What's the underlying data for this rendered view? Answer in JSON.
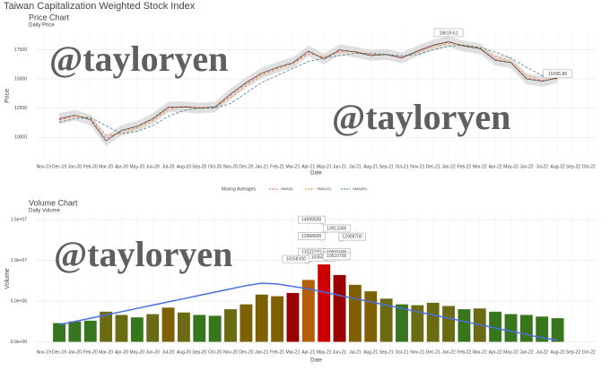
{
  "title": "Taiwan Capitalization Weighted Stock Index",
  "watermarks": [
    "@tayloryen",
    "@tayloryen",
    "@tayloryen"
  ],
  "chart_data": [
    {
      "type": "line",
      "title": "Price Chart",
      "subtitle": "Daily Price",
      "y_label": "Price",
      "x_label": "Date",
      "categories": [
        "Nov-19",
        "Dec-19",
        "Jan-20",
        "Feb-20",
        "Mar-20",
        "Apr-20",
        "May-20",
        "Jun-20",
        "Jul-20",
        "Aug-20",
        "Sep-20",
        "Oct-20",
        "Nov-20",
        "Dec-20",
        "Jan-21",
        "Feb-21",
        "Mar-21",
        "Apr-21",
        "May-21",
        "Jun-21",
        "Jul-21",
        "Aug-21",
        "Sep-21",
        "Oct-21",
        "Nov-21",
        "Dec-21",
        "Jan-22",
        "Feb-22",
        "Mar-22",
        "Apr-22",
        "May-22",
        "Jun-22",
        "Jul-22",
        "Aug-22",
        "Sep-22",
        "Oct-22"
      ],
      "values": [
        null,
        11600,
        11900,
        11500,
        9700,
        10600,
        10950,
        11600,
        12600,
        12600,
        12500,
        12600,
        13700,
        14700,
        15500,
        16000,
        16400,
        17400,
        16700,
        17500,
        17300,
        17000,
        17100,
        16800,
        17400,
        17900,
        18200,
        17800,
        17600,
        16600,
        16400,
        15000,
        14800,
        15100,
        null,
        null
      ],
      "color": "#333333",
      "legend_title": "Moving Averages",
      "series": [
        {
          "name": "SMA(5)",
          "color": "#e06666",
          "values": [
            null,
            11550,
            11850,
            11600,
            9900,
            10500,
            10900,
            11550,
            12500,
            12650,
            12550,
            12550,
            13600,
            14600,
            15450,
            15950,
            16350,
            17300,
            16800,
            17400,
            17350,
            17050,
            17100,
            16850,
            17350,
            17850,
            18150,
            17850,
            17600,
            16700,
            16400,
            15100,
            14850,
            15050,
            null,
            null
          ]
        },
        {
          "name": "SMA(15)",
          "color": "#e69138",
          "values": [
            null,
            11500,
            11800,
            11700,
            10200,
            10300,
            10800,
            11450,
            12350,
            12600,
            12550,
            12550,
            13400,
            14450,
            15300,
            15850,
            16300,
            17150,
            16900,
            17300,
            17350,
            17100,
            17100,
            16900,
            17250,
            17750,
            18050,
            17900,
            17650,
            16900,
            16500,
            15300,
            14900,
            15000,
            null,
            null
          ]
        },
        {
          "name": "SMA(50)",
          "color": "#45818e",
          "values": [
            null,
            11300,
            11600,
            11700,
            11000,
            10300,
            10500,
            11000,
            11800,
            12300,
            12500,
            12500,
            12900,
            13800,
            14700,
            15300,
            15900,
            16500,
            16800,
            17000,
            17200,
            17200,
            17100,
            17000,
            17100,
            17500,
            17800,
            17900,
            17700,
            17300,
            16800,
            16000,
            15300,
            15000,
            null,
            null
          ]
        }
      ],
      "ylim": [
        8100,
        19000
      ],
      "yticks": [
        10000,
        12500,
        15000,
        17500
      ],
      "grid": true,
      "annotations": [
        {
          "x": "Jan-22",
          "value": 18619.61
        },
        {
          "x": "Aug-22",
          "value": 15095.89
        }
      ]
    },
    {
      "type": "bar",
      "title": "Volume Chart",
      "subtitle": "Daily Volume",
      "y_label": "Volume",
      "x_label": "Date",
      "categories": [
        "Nov-19",
        "Dec-19",
        "Jan-20",
        "Feb-20",
        "Mar-20",
        "Apr-20",
        "May-20",
        "Jun-20",
        "Jul-20",
        "Aug-20",
        "Sep-20",
        "Oct-20",
        "Nov-20",
        "Dec-20",
        "Jan-21",
        "Feb-21",
        "Mar-21",
        "Apr-21",
        "May-21",
        "Jun-21",
        "Jul-21",
        "Aug-21",
        "Sep-21",
        "Oct-21",
        "Nov-21",
        "Dec-21",
        "Jan-22",
        "Feb-22",
        "Mar-22",
        "Apr-22",
        "May-22",
        "Jun-22",
        "Jul-22",
        "Aug-22",
        "Sep-22",
        "Oct-22"
      ],
      "values": [
        null,
        2300000,
        2500000,
        2600000,
        3700000,
        3300000,
        3000000,
        3400000,
        4200000,
        3600000,
        3300000,
        3200000,
        4000000,
        4600000,
        5800000,
        5600000,
        6000000,
        7600000,
        9500000,
        8200000,
        7000000,
        6200000,
        5300000,
        4600000,
        4500000,
        4800000,
        4400000,
        4000000,
        4100000,
        3700000,
        3400000,
        3300000,
        3100000,
        2900000,
        null,
        null
      ],
      "colors": [
        null,
        "#38761d",
        "#38761d",
        "#38761d",
        "#6b6b14",
        "#6b6b14",
        "#38761d",
        "#6b6b14",
        "#7f6000",
        "#6b6b14",
        "#38761d",
        "#38761d",
        "#6b6b14",
        "#7f6000",
        "#7f6000",
        "#7f6000",
        "#990000",
        "#b45f06",
        "#cc0000",
        "#990000",
        "#7f6000",
        "#7f6000",
        "#6b6b14",
        "#38761d",
        "#6b6b14",
        "#6b6b14",
        "#6b6b14",
        "#38761d",
        "#6b6b14",
        "#38761d",
        "#38761d",
        "#38761d",
        "#38761d",
        "#38761d",
        null,
        null
      ],
      "trend": [
        null,
        2100000,
        2500000,
        2900000,
        3300000,
        3700000,
        4100000,
        4500000,
        4900000,
        5300000,
        5700000,
        6100000,
        6500000,
        6900000,
        7200000,
        7100000,
        6800000,
        6500000,
        6100000,
        5700000,
        5300000,
        4900000,
        4500000,
        4100000,
        3700000,
        3300000,
        2900000,
        2500000,
        2100000,
        1700000,
        1300000,
        900000,
        500000,
        200000,
        null,
        null
      ],
      "trend_color": "#4a6fdc",
      "ylim": [
        -500000,
        16000000
      ],
      "yticks": [
        {
          "value": 0,
          "label": "0.0e+00"
        },
        {
          "value": 5000000,
          "label": "5.0e+06"
        },
        {
          "value": 10000000,
          "label": "1.0e+07"
        },
        {
          "value": 15000000,
          "label": "1.5e+07"
        }
      ],
      "grid": true,
      "annotations": [
        {
          "x": "May-21",
          "value": 14999500
        },
        {
          "x": "May-21",
          "value": 13913300
        },
        {
          "x": "May-21",
          "value": 12968600
        },
        {
          "x": "Jun-21",
          "value": 12909700
        },
        {
          "x": "May-21",
          "value": 11037100
        },
        {
          "x": "May-21",
          "value": 10991600
        },
        {
          "x": "Jun-21",
          "value": 10615100
        },
        {
          "x": "Apr-21",
          "value": 10350300
        },
        {
          "x": "Apr-21",
          "value": 10158100
        },
        {
          "x": "May-21",
          "value": 10510700
        }
      ]
    }
  ]
}
